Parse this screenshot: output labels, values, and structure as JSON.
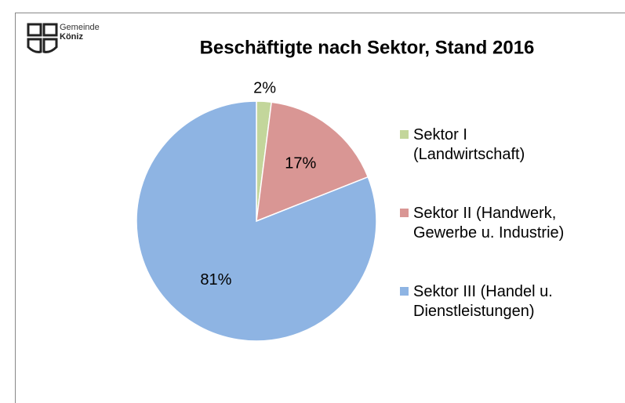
{
  "logo": {
    "line1": "Gemeinde",
    "line2": "Köniz"
  },
  "chart_data": {
    "type": "pie",
    "title": "Beschäftigte nach Sektor, Stand 2016",
    "categories": [
      "Sektor I (Landwirtschaft)",
      "Sektor II (Handwerk, Gewerbe u. Industrie)",
      "Sektor III (Handel u. Dienstleistungen)"
    ],
    "values": [
      2,
      17,
      81
    ],
    "value_labels": [
      "2%",
      "17%",
      "81%"
    ],
    "colors": [
      "#c3d69b",
      "#d99694",
      "#8eb4e3"
    ],
    "legend": "right"
  }
}
